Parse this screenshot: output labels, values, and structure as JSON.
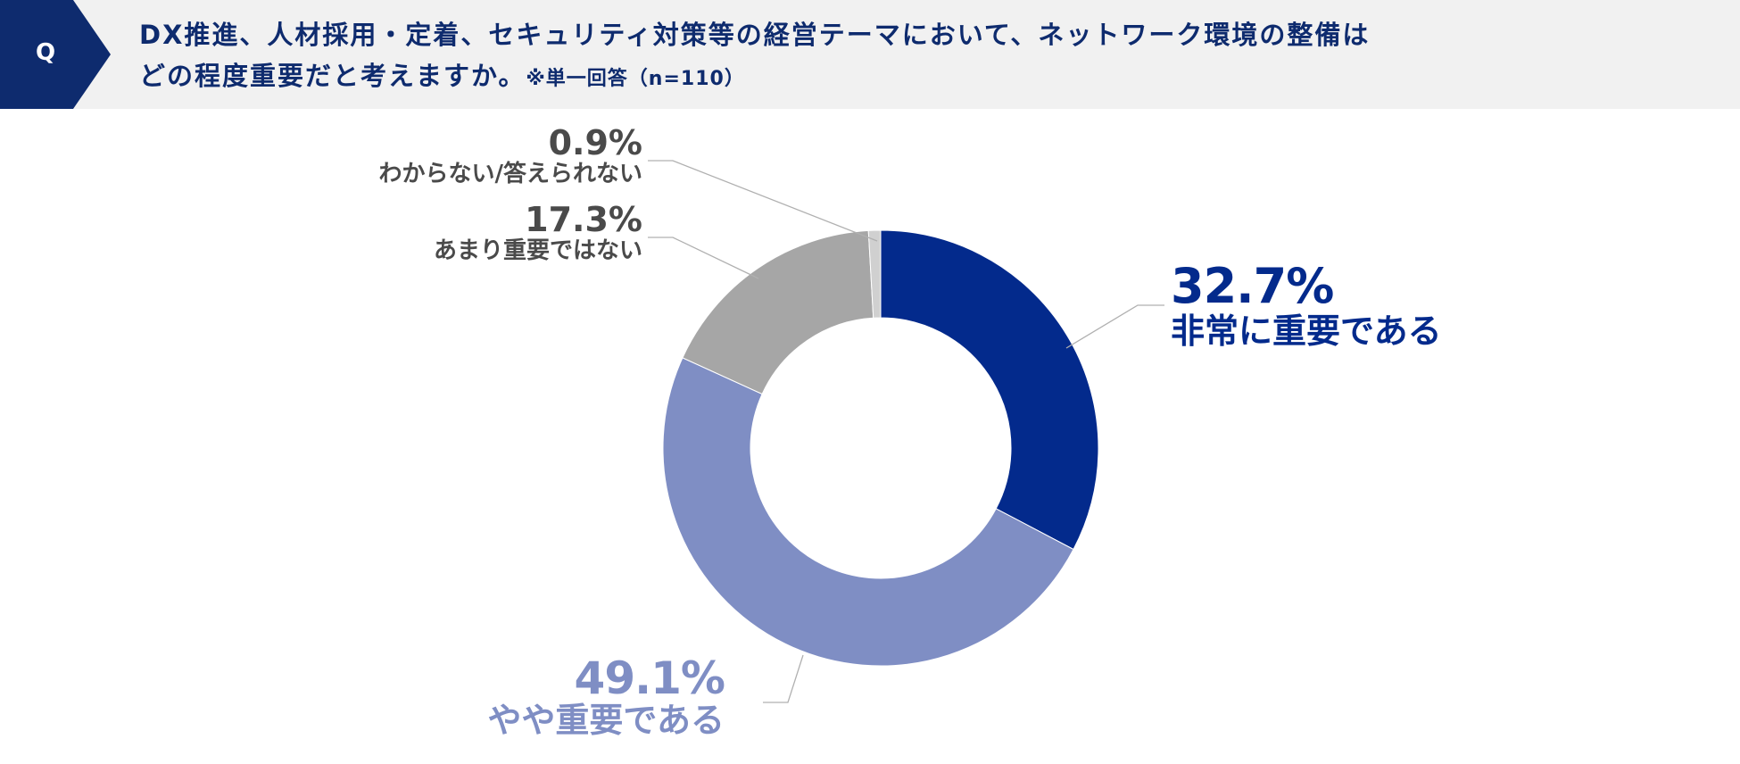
{
  "header": {
    "badge": "Q",
    "question_line1": "DX推進、人材採用・定着、セキュリティ対策等の経営テーマにおいて、ネットワーク環境の整備は",
    "question_line2": "どの程度重要だと考えますか。",
    "note": "※単一回答（n=110）"
  },
  "colors": {
    "header_bg": "#f1f1f1",
    "badge": "#0e2b6e",
    "very_important": "#032a8c",
    "somewhat_important": "#7f8ec4",
    "not_very_important": "#a6a6a6",
    "unknown": "#d0d0d0"
  },
  "chart_data": {
    "type": "pie",
    "subtype": "donut",
    "categories": [
      "非常に重要である",
      "やや重要である",
      "あまり重要ではない",
      "わからない/答えられない"
    ],
    "values": [
      32.7,
      49.1,
      17.3,
      0.9
    ],
    "value_labels": [
      "32.7%",
      "49.1%",
      "17.3%",
      "0.9%"
    ],
    "colors": [
      "#032a8c",
      "#7f8ec4",
      "#a6a6a6",
      "#d0d0d0"
    ]
  }
}
